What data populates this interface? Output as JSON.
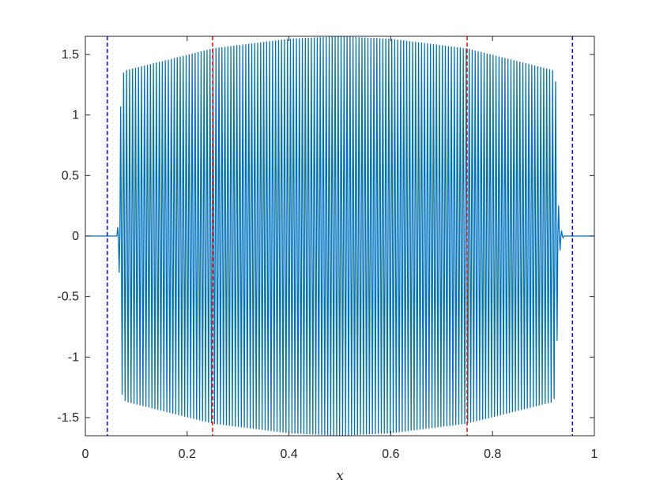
{
  "chart_data": {
    "type": "line",
    "title": "",
    "xlabel": "x",
    "ylabel": "",
    "xlim": [
      0,
      1
    ],
    "ylim": [
      -1.65,
      1.65
    ],
    "xticks": [
      0,
      0.2,
      0.4,
      0.6,
      0.8,
      1
    ],
    "xtick_labels": [
      "0",
      "0.2",
      "0.4",
      "0.6",
      "0.8",
      "1"
    ],
    "yticks": [
      -1.5,
      -1,
      -0.5,
      0,
      0.5,
      1,
      1.5
    ],
    "ytick_labels": [
      "-1.5",
      "-1",
      "-0.5",
      "0",
      "0.5",
      "1",
      "1.5"
    ],
    "grid": false,
    "series": [
      {
        "color": "#0072BD",
        "style": "solid",
        "description_points": {
          "x": [
            0.0,
            0.062,
            0.066,
            0.07,
            0.073,
            0.075,
            0.08,
            0.25,
            0.4,
            0.5,
            0.6,
            0.75,
            0.92,
            0.925,
            0.93,
            0.935,
            0.94,
            1.0
          ],
          "y_envelope": [
            0.0,
            0.0,
            0.2,
            1.25,
            1.33,
            1.35,
            1.37,
            1.55,
            1.63,
            1.65,
            1.63,
            1.55,
            1.37,
            1.25,
            0.2,
            0.05,
            0.0,
            0.0
          ]
        },
        "oscillation_count_approx": 150
      }
    ],
    "vlines": [
      {
        "x": 0.043,
        "color": "#0000ff",
        "style": "dashed"
      },
      {
        "x": 0.25,
        "color": "#ff0000",
        "style": "dashed"
      },
      {
        "x": 0.75,
        "color": "#ff0000",
        "style": "dashed"
      },
      {
        "x": 0.957,
        "color": "#0000ff",
        "style": "dashed"
      }
    ]
  }
}
